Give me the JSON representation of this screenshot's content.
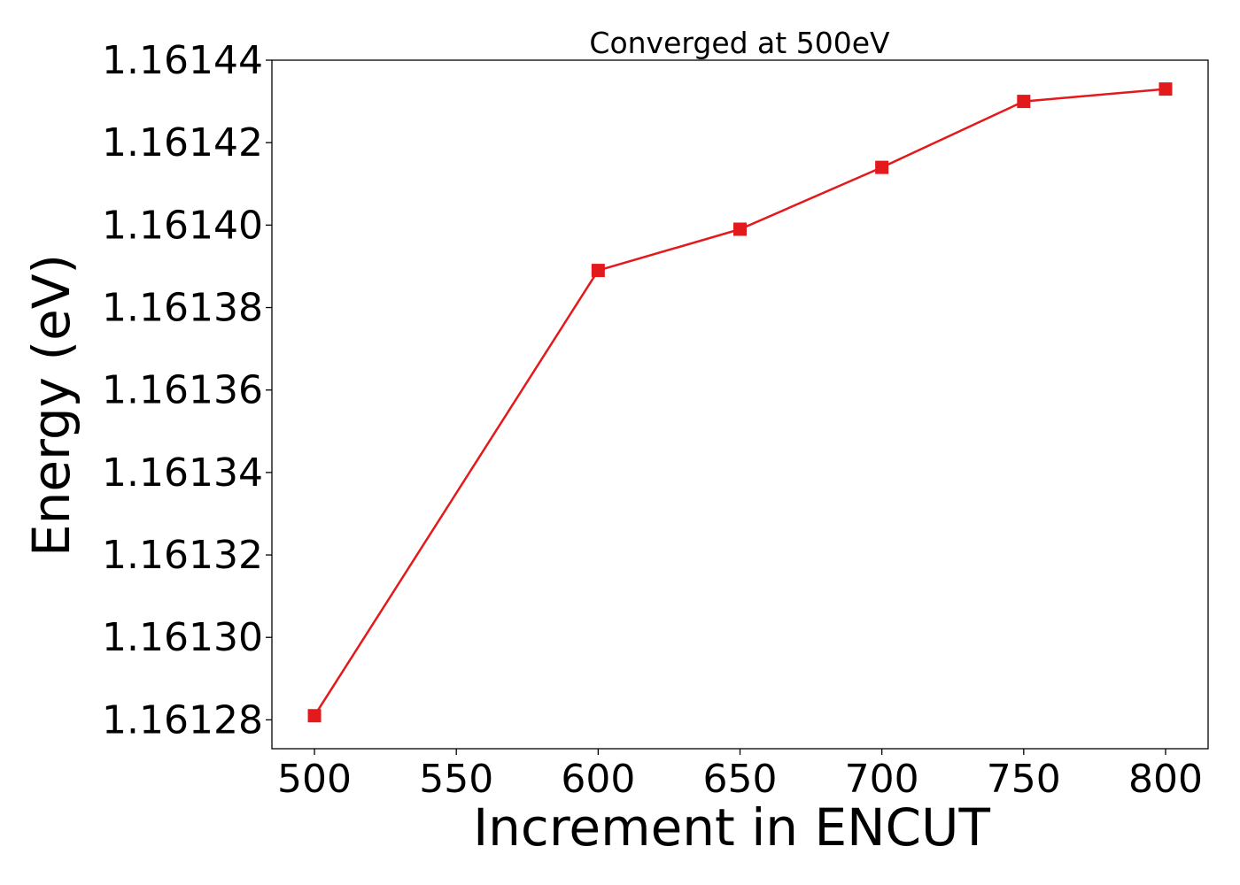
{
  "chart_data": {
    "type": "line",
    "title": "Converged at 500eV",
    "xlabel": "Increment in ENCUT",
    "ylabel": "Energy (eV)",
    "x": [
      500,
      600,
      650,
      700,
      750,
      800
    ],
    "series": [
      {
        "values": [
          1.161281,
          1.161389,
          1.161399,
          1.161414,
          1.16143,
          1.161433
        ],
        "color": "#e31a1c",
        "marker": "square"
      }
    ],
    "xticks": [
      500,
      550,
      600,
      650,
      700,
      750,
      800
    ],
    "xtick_labels": [
      "500",
      "550",
      "600",
      "650",
      "700",
      "750",
      "800"
    ],
    "yticks": [
      1.16128,
      1.1613,
      1.16132,
      1.16134,
      1.16136,
      1.16138,
      1.1614,
      1.16142,
      1.16144
    ],
    "ytick_labels": [
      "1.16128",
      "1.16130",
      "1.16132",
      "1.16134",
      "1.16136",
      "1.16138",
      "1.16140",
      "1.16142",
      "1.16144"
    ],
    "xlim": [
      485,
      815
    ],
    "ylim": [
      1.161273,
      1.16144
    ],
    "grid": false,
    "legend": "none"
  }
}
